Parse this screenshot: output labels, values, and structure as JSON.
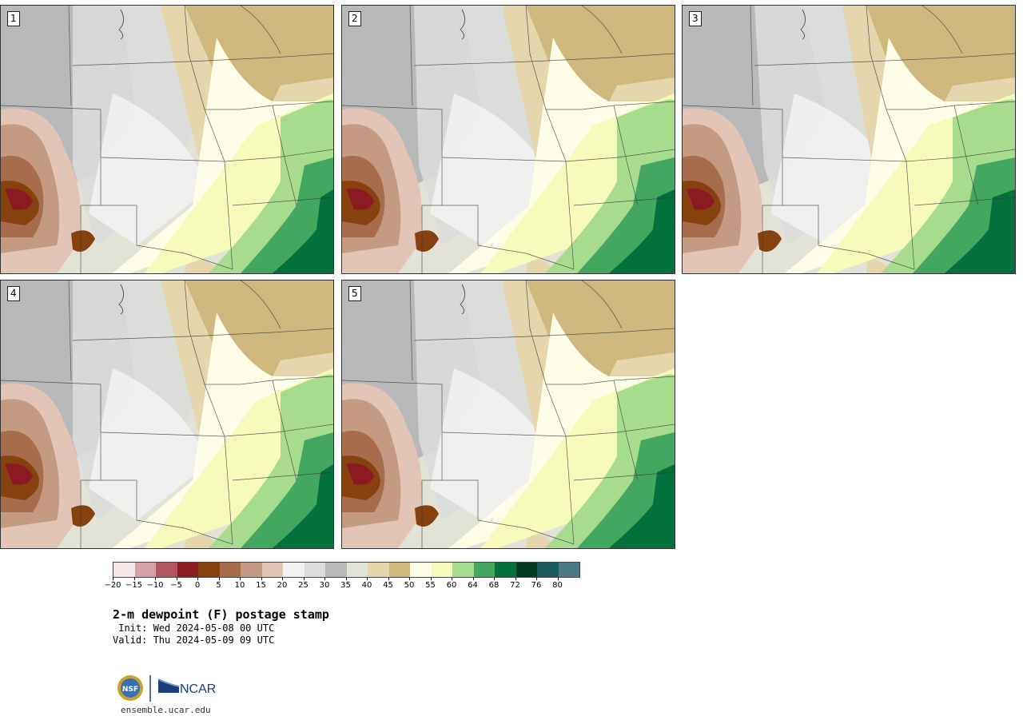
{
  "panels": [
    {
      "label": "1"
    },
    {
      "label": "2"
    },
    {
      "label": "3"
    },
    {
      "label": "4"
    },
    {
      "label": "5"
    }
  ],
  "colorbar": {
    "colors": [
      "#f6e5e6",
      "#d3a1a6",
      "#b2575f",
      "#8c1a22",
      "#86410f",
      "#a66c4b",
      "#c59a82",
      "#e3c5b8",
      "#f1f1f1",
      "#dcdcdc",
      "#b8b8b8",
      "#e2e2d6",
      "#e6d6ad",
      "#cfb87d",
      "#fefde7",
      "#f6faba",
      "#a7dc8f",
      "#43a760",
      "#03713c",
      "#023b1f",
      "#1c5a5d",
      "#4d7a85"
    ],
    "ticks": [
      "−20",
      "−15",
      "−10",
      "−5",
      "0",
      "5",
      "10",
      "15",
      "20",
      "25",
      "30",
      "35",
      "40",
      "45",
      "50",
      "55",
      "60",
      "64",
      "68",
      "72",
      "76",
      "80"
    ]
  },
  "title": "2-m dewpoint (F) postage stamp",
  "init_text": " Init: Wed 2024-05-08 00 UTC",
  "valid_text": "Valid: Thu 2024-05-09 09 UTC",
  "logos": {
    "nsf": "NSF",
    "ncar": "NCAR"
  },
  "website": "ensemble.ucar.edu"
}
